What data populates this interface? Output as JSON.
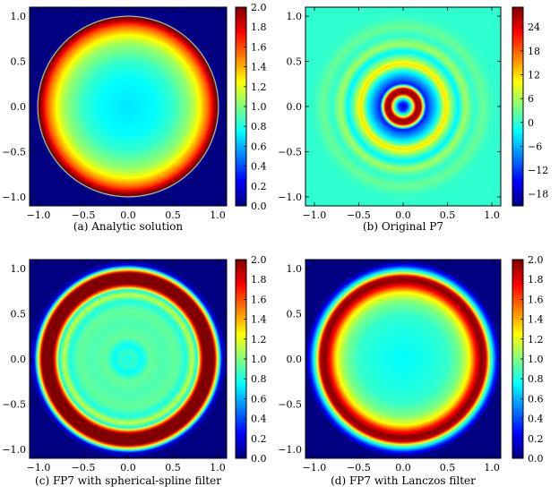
{
  "figure": {
    "panels": [
      {
        "caption": "(a) Analytic solution"
      },
      {
        "caption": "(b) Original P7"
      },
      {
        "caption": "(c) FP7 with spherical-spline filter"
      },
      {
        "caption": "(d) FP7 with Lanczos filter"
      }
    ]
  },
  "chart_data": [
    {
      "type": "heatmap",
      "title": "(a) Analytic solution",
      "xlabel": "",
      "ylabel": "",
      "xlim": [
        -1.1,
        1.1
      ],
      "ylim": [
        -1.1,
        1.1
      ],
      "xticks": [
        -1.0,
        -0.5,
        0.0,
        0.5,
        1.0
      ],
      "yticks": [
        -1.0,
        -0.5,
        0.0,
        0.5,
        1.0
      ],
      "colorbar": {
        "min": 0.0,
        "max": 2.0,
        "ticks": [
          0.0,
          0.2,
          0.4,
          0.6,
          0.8,
          1.0,
          1.2,
          1.4,
          1.6,
          1.8,
          2.0
        ]
      },
      "colormap": "jet",
      "radial_profile": {
        "r": [
          0.0,
          0.3,
          0.5,
          0.7,
          0.8,
          0.88,
          0.92,
          0.98,
          1.0,
          1.02,
          1.1
        ],
        "value": [
          0.7,
          0.75,
          0.85,
          1.05,
          1.25,
          1.5,
          1.65,
          2.0,
          2.0,
          0.0,
          0.0
        ]
      }
    },
    {
      "type": "heatmap",
      "title": "(b) Original P7",
      "xlabel": "",
      "ylabel": "",
      "xlim": [
        -1.1,
        1.1
      ],
      "ylim": [
        -1.1,
        1.1
      ],
      "xticks": [
        -1.0,
        -0.5,
        0.0,
        0.5,
        1.0
      ],
      "yticks": [
        -1.0,
        -0.5,
        0.0,
        0.5,
        1.0
      ],
      "colorbar": {
        "min": -21,
        "max": 29,
        "ticks": [
          -18,
          -12,
          -6,
          0,
          6,
          12,
          18,
          24
        ]
      },
      "colormap": "jet",
      "radial_profile": {
        "r": [
          0.0,
          0.05,
          0.1,
          0.15,
          0.2,
          0.26,
          0.3,
          0.4,
          0.48,
          0.55,
          0.62,
          0.7,
          0.8,
          0.9,
          1.0,
          1.1
        ],
        "value": [
          -16,
          -12,
          2,
          28,
          26,
          -14,
          -10,
          -2,
          12,
          4,
          -3,
          6,
          0,
          3,
          0.5,
          0
        ]
      }
    },
    {
      "type": "heatmap",
      "title": "(c) FP7 with spherical-spline filter",
      "xlabel": "",
      "ylabel": "",
      "xlim": [
        -1.1,
        1.1
      ],
      "ylim": [
        -1.1,
        1.1
      ],
      "xticks": [
        -1.0,
        -0.5,
        0.0,
        0.5,
        1.0
      ],
      "yticks": [
        -1.0,
        -0.5,
        0.0,
        0.5,
        1.0
      ],
      "colorbar": {
        "min": 0.0,
        "max": 2.0,
        "ticks": [
          0.0,
          0.2,
          0.4,
          0.6,
          0.8,
          1.0,
          1.2,
          1.4,
          1.6,
          1.8,
          2.0
        ]
      },
      "colormap": "jet",
      "radial_profile": {
        "r": [
          0.0,
          0.1,
          0.15,
          0.25,
          0.4,
          0.55,
          0.65,
          0.72,
          0.77,
          0.8,
          0.84,
          0.9,
          0.96,
          1.0,
          1.05,
          1.1
        ],
        "value": [
          0.8,
          0.85,
          0.75,
          0.95,
          0.9,
          0.95,
          0.8,
          1.15,
          0.75,
          1.4,
          2.0,
          2.0,
          2.0,
          1.2,
          0.2,
          0.0
        ]
      }
    },
    {
      "type": "heatmap",
      "title": "(d) FP7 with Lanczos filter",
      "xlabel": "",
      "ylabel": "",
      "xlim": [
        -1.1,
        1.1
      ],
      "ylim": [
        -1.1,
        1.1
      ],
      "xticks": [
        -1.0,
        -0.5,
        0.0,
        0.5,
        1.0
      ],
      "yticks": [
        -1.0,
        -0.5,
        0.0,
        0.5,
        1.0
      ],
      "colorbar": {
        "min": 0.0,
        "max": 2.0,
        "ticks": [
          0.0,
          0.2,
          0.4,
          0.6,
          0.8,
          1.0,
          1.2,
          1.4,
          1.6,
          1.8,
          2.0
        ]
      },
      "colormap": "jet",
      "radial_profile": {
        "r": [
          0.0,
          0.3,
          0.5,
          0.65,
          0.75,
          0.82,
          0.88,
          0.93,
          0.98,
          1.05,
          1.1
        ],
        "value": [
          0.75,
          0.8,
          0.85,
          1.0,
          1.25,
          1.7,
          2.0,
          1.9,
          1.0,
          0.3,
          0.0
        ]
      }
    }
  ]
}
